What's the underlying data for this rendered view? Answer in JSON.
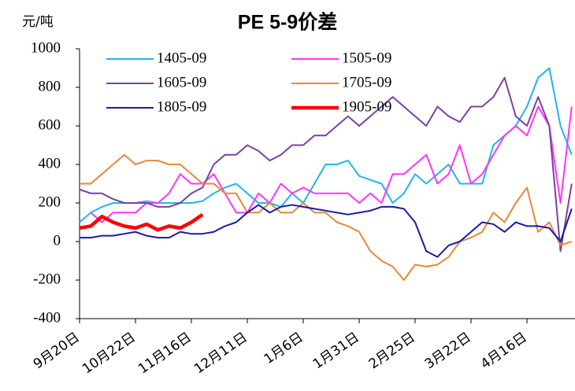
{
  "chart_data": {
    "type": "line",
    "title": "PE 5-9价差",
    "y_label": "元/吨",
    "categories": [
      "9月20日",
      null,
      null,
      null,
      null,
      "10月22日",
      null,
      null,
      null,
      null,
      "11月16日",
      null,
      null,
      null,
      null,
      "12月11日",
      null,
      null,
      null,
      null,
      "1月6日",
      null,
      null,
      null,
      null,
      "1月31日",
      null,
      null,
      null,
      null,
      "2月25日",
      null,
      null,
      null,
      null,
      "3月22日",
      null,
      null,
      null,
      null,
      "4月16日",
      null,
      null,
      null,
      null
    ],
    "series": [
      {
        "name": "1405-09",
        "color": "#1fb8e0",
        "width": 2,
        "values": [
          100,
          150,
          180,
          200,
          200,
          200,
          210,
          200,
          200,
          200,
          200,
          210,
          250,
          280,
          300,
          250,
          200,
          200,
          180,
          250,
          200,
          300,
          400,
          400,
          420,
          340,
          320,
          300,
          200,
          250,
          350,
          300,
          350,
          400,
          300,
          300,
          300,
          500,
          550,
          600,
          700,
          850,
          900,
          600,
          450
        ]
      },
      {
        "name": "1505-09",
        "color": "#ff33ff",
        "width": 2,
        "values": [
          null,
          150,
          100,
          150,
          150,
          150,
          200,
          200,
          250,
          350,
          300,
          300,
          350,
          250,
          150,
          150,
          250,
          200,
          300,
          250,
          280,
          250,
          250,
          250,
          250,
          200,
          250,
          200,
          350,
          350,
          400,
          450,
          300,
          350,
          500,
          300,
          350,
          450,
          550,
          600,
          550,
          700,
          600,
          200,
          700
        ]
      },
      {
        "name": "1605-09",
        "color": "#7b3fa0",
        "width": 2,
        "values": [
          270,
          250,
          250,
          220,
          200,
          200,
          200,
          180,
          180,
          200,
          250,
          280,
          400,
          450,
          450,
          500,
          470,
          420,
          450,
          500,
          500,
          550,
          550,
          600,
          650,
          600,
          650,
          700,
          750,
          700,
          650,
          600,
          700,
          650,
          620,
          700,
          700,
          750,
          850,
          650,
          600,
          750,
          600,
          -50,
          300
        ]
      },
      {
        "name": "1705-09",
        "color": "#e8873a",
        "width": 2,
        "values": [
          300,
          300,
          350,
          400,
          450,
          400,
          420,
          420,
          400,
          400,
          350,
          300,
          300,
          250,
          250,
          150,
          150,
          200,
          150,
          150,
          200,
          150,
          150,
          100,
          80,
          50,
          -50,
          -100,
          -130,
          -200,
          -120,
          -130,
          -120,
          -80,
          0,
          20,
          50,
          150,
          100,
          200,
          280,
          50,
          100,
          -20,
          0
        ]
      },
      {
        "name": "1805-09",
        "color": "#1a1aa8",
        "width": 2,
        "values": [
          20,
          20,
          30,
          30,
          40,
          50,
          30,
          20,
          20,
          50,
          40,
          40,
          50,
          80,
          100,
          150,
          190,
          150,
          180,
          190,
          180,
          170,
          160,
          150,
          140,
          150,
          160,
          180,
          180,
          170,
          100,
          -50,
          -80,
          -20,
          0,
          50,
          100,
          90,
          50,
          100,
          80,
          80,
          70,
          0,
          170
        ]
      },
      {
        "name": "1905-09",
        "color": "#ff0000",
        "width": 4.5,
        "values": [
          70,
          80,
          130,
          100,
          80,
          70,
          90,
          60,
          80,
          70,
          100,
          140,
          null,
          null,
          null,
          null,
          null,
          null,
          null,
          null,
          null,
          null,
          null,
          null,
          null,
          null,
          null,
          null,
          null,
          null,
          null,
          null,
          null,
          null,
          null,
          null,
          null,
          null,
          null,
          null,
          null,
          null,
          null,
          null,
          null
        ]
      }
    ],
    "ylim": [
      -400,
      1000
    ],
    "yticks": [
      -400,
      -200,
      0,
      200,
      400,
      600,
      800,
      1000
    ],
    "grid": false
  }
}
